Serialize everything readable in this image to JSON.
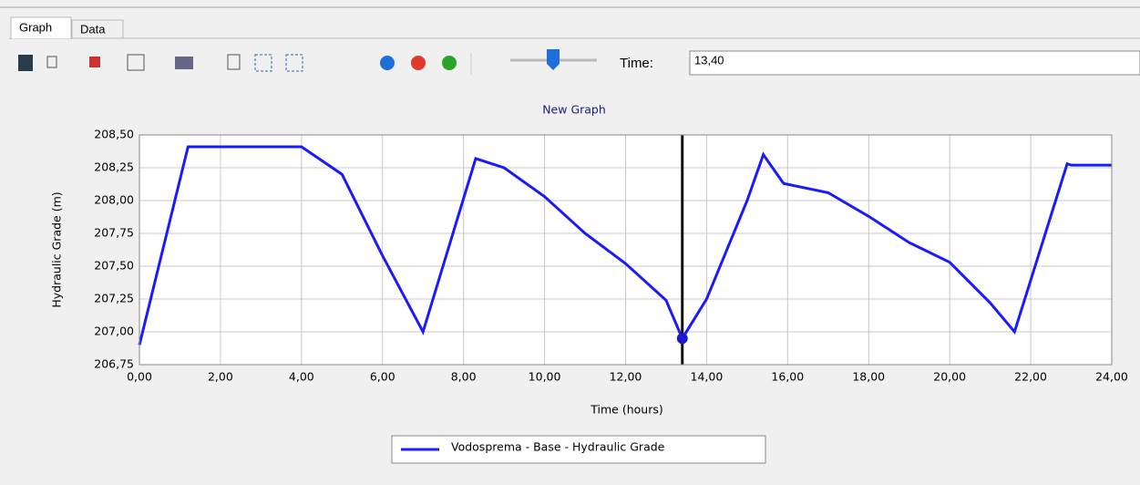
{
  "tabs": [
    "Graph",
    "Data"
  ],
  "toolbar": {
    "time_label": "Time:"
  },
  "chart_data": {
    "type": "line",
    "title": "New Graph",
    "x_label": "Time (hours)",
    "y_label": "Hydraulic Grade (m)",
    "cursor": {
      "value": 13.4,
      "label": "13,40"
    },
    "x": [
      0,
      1.2,
      4.0,
      5.0,
      6.0,
      7.0,
      8.3,
      9.0,
      10.0,
      11.0,
      12.0,
      13.0,
      13.4,
      14.0,
      15.0,
      15.4,
      15.9,
      17.0,
      18.0,
      19.0,
      20.0,
      21.0,
      21.6,
      22.9,
      23.0,
      24.0
    ],
    "series": [
      {
        "name": "Vodosprema - Base - Hydraulic Grade",
        "color": "#1a1aff",
        "values": [
          206.9,
          208.41,
          208.41,
          208.2,
          207.58,
          207.0,
          208.32,
          208.25,
          208.03,
          207.75,
          207.52,
          207.24,
          206.95,
          207.25,
          208.0,
          208.35,
          208.13,
          208.06,
          207.88,
          207.68,
          207.53,
          207.22,
          207.0,
          208.28,
          208.27,
          208.27
        ]
      }
    ],
    "xlim": [
      0,
      24
    ],
    "ylim": [
      206.75,
      208.5
    ],
    "xticks": [
      {
        "value": 0,
        "label": "0,00"
      },
      {
        "value": 2,
        "label": "2,00"
      },
      {
        "value": 4,
        "label": "4,00"
      },
      {
        "value": 6,
        "label": "6,00"
      },
      {
        "value": 8,
        "label": "8,00"
      },
      {
        "value": 10,
        "label": "10,00"
      },
      {
        "value": 12,
        "label": "12,00"
      },
      {
        "value": 14,
        "label": "14,00"
      },
      {
        "value": 16,
        "label": "16,00"
      },
      {
        "value": 18,
        "label": "18,00"
      },
      {
        "value": 20,
        "label": "20,00"
      },
      {
        "value": 22,
        "label": "22,00"
      },
      {
        "value": 24,
        "label": "24,00"
      }
    ],
    "yticks": [
      {
        "value": 206.75,
        "label": "206,75"
      },
      {
        "value": 207,
        "label": "207,00"
      },
      {
        "value": 207.25,
        "label": "207,25"
      },
      {
        "value": 207.5,
        "label": "207,50"
      },
      {
        "value": 207.75,
        "label": "207,75"
      },
      {
        "value": 208,
        "label": "208,00"
      },
      {
        "value": 208.25,
        "label": "208,25"
      },
      {
        "value": 208.5,
        "label": "208,50"
      }
    ],
    "grid": true
  }
}
